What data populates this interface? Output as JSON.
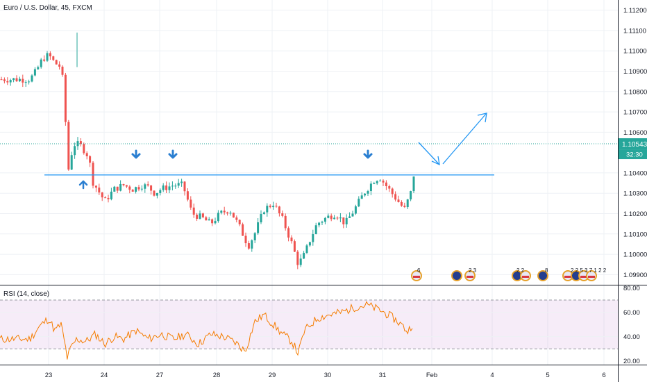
{
  "chart_data": [
    {
      "type": "candlestick",
      "title": "Euro / U.S. Dollar, 45, FXCM",
      "ylim": [
        1.0985,
        1.1125
      ],
      "y_ticks": [
        "1.11200",
        "1.11100",
        "1.11000",
        "1.10900",
        "1.10800",
        "1.10700",
        "1.10600",
        "1.10400",
        "1.10300",
        "1.10200",
        "1.10100",
        "1.10000",
        "1.09900"
      ],
      "x_ticks": [
        "23",
        "24",
        "27",
        "28",
        "29",
        "30",
        "31",
        "Feb",
        "4",
        "5",
        "6"
      ],
      "last_price": "1.10543",
      "countdown": "32:30",
      "support_level": 1.1039,
      "price_path": [
        [
          22.4,
          1.1086
        ],
        [
          22.6,
          1.109
        ],
        [
          22.8,
          1.1096
        ],
        [
          23.0,
          1.1098
        ],
        [
          23.2,
          1.1094
        ],
        [
          23.4,
          1.1092
        ],
        [
          23.5,
          1.108
        ],
        [
          23.58,
          1.1052
        ],
        [
          23.62,
          1.104
        ],
        [
          23.7,
          1.1047
        ],
        [
          23.8,
          1.1054
        ],
        [
          24.0,
          1.1054
        ],
        [
          24.2,
          1.105
        ],
        [
          24.3,
          1.1047
        ],
        [
          24.4,
          1.1036
        ],
        [
          24.6,
          1.1031
        ],
        [
          24.8,
          1.1026
        ],
        [
          25.1,
          1.1032
        ],
        [
          25.4,
          1.1034
        ],
        [
          25.7,
          1.1032
        ],
        [
          26.0,
          1.1034
        ],
        [
          26.2,
          1.1033
        ],
        [
          26.4,
          1.103
        ],
        [
          26.6,
          1.1032
        ],
        [
          27.0,
          1.1034
        ],
        [
          27.3,
          1.1034
        ],
        [
          27.6,
          1.102
        ],
        [
          27.9,
          1.1018
        ],
        [
          28.2,
          1.1015
        ],
        [
          28.5,
          1.102
        ],
        [
          28.8,
          1.1022
        ],
        [
          29.1,
          1.1014
        ],
        [
          29.4,
          1.1004
        ],
        [
          29.6,
          1.101
        ],
        [
          29.9,
          1.1022
        ],
        [
          30.2,
          1.1025
        ],
        [
          30.5,
          1.1017
        ],
        [
          30.8,
          1.1005
        ],
        [
          31.0,
          1.0995
        ],
        [
          31.2,
          1.1
        ],
        [
          31.4,
          1.1008
        ],
        [
          31.6,
          1.1015
        ],
        [
          31.9,
          1.1018
        ],
        [
          32.2,
          1.102
        ],
        [
          32.5,
          1.1015
        ],
        [
          32.8,
          1.1022
        ],
        [
          33.1,
          1.103
        ],
        [
          33.4,
          1.1036
        ],
        [
          33.6,
          1.1038
        ],
        [
          33.8,
          1.1034
        ],
        [
          34.0,
          1.103
        ],
        [
          34.2,
          1.1026
        ],
        [
          34.4,
          1.1022
        ],
        [
          34.6,
          1.103
        ],
        [
          34.7,
          1.1039
        ],
        [
          34.8,
          1.1047
        ],
        [
          34.9,
          1.1054
        ]
      ]
    },
    {
      "type": "line",
      "title": "RSI (14, close)",
      "ylim": [
        17,
        82
      ],
      "y_ticks": [
        "80.00",
        "60.00",
        "40.00",
        "20.00"
      ],
      "bands": [
        30,
        70
      ],
      "values": [
        [
          22.4,
          38
        ],
        [
          22.7,
          48
        ],
        [
          23.0,
          55
        ],
        [
          23.2,
          45
        ],
        [
          23.4,
          50
        ],
        [
          23.55,
          30
        ],
        [
          23.6,
          22
        ],
        [
          23.7,
          30
        ],
        [
          23.9,
          38
        ],
        [
          24.2,
          36
        ],
        [
          24.5,
          42
        ],
        [
          24.8,
          34
        ],
        [
          25.1,
          40
        ],
        [
          25.4,
          38
        ],
        [
          25.8,
          45
        ],
        [
          26.2,
          38
        ],
        [
          26.6,
          42
        ],
        [
          27.0,
          38
        ],
        [
          27.4,
          42
        ],
        [
          27.8,
          34
        ],
        [
          28.2,
          42
        ],
        [
          28.6,
          40
        ],
        [
          29.0,
          35
        ],
        [
          29.3,
          28
        ],
        [
          29.6,
          52
        ],
        [
          29.9,
          58
        ],
        [
          30.2,
          50
        ],
        [
          30.5,
          42
        ],
        [
          30.8,
          36
        ],
        [
          31.0,
          26
        ],
        [
          31.2,
          45
        ],
        [
          31.6,
          55
        ],
        [
          32.0,
          58
        ],
        [
          32.4,
          60
        ],
        [
          32.8,
          64
        ],
        [
          33.2,
          66
        ],
        [
          33.6,
          62
        ],
        [
          34.0,
          56
        ],
        [
          34.3,
          50
        ],
        [
          34.5,
          44
        ],
        [
          34.7,
          52
        ],
        [
          34.8,
          66
        ],
        [
          34.9,
          76
        ]
      ]
    }
  ],
  "annotations": {
    "events_row_counts": [
      "6",
      "2 3",
      "2 2",
      "8",
      "2 2 5 3 7 1 2 2"
    ]
  },
  "colors": {
    "up": "#26a69a",
    "down": "#ef5350",
    "rsi": "#f57c00",
    "rsi_band": "#9c27b0",
    "line_blue": "#2196f3",
    "arrow_blue": "#2a7fd1",
    "price_tag": "#26a69a"
  }
}
